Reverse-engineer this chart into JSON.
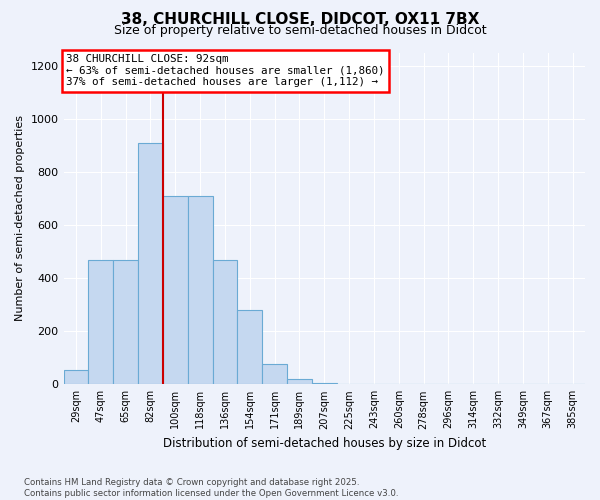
{
  "title_line1": "38, CHURCHILL CLOSE, DIDCOT, OX11 7BX",
  "title_line2": "Size of property relative to semi-detached houses in Didcot",
  "xlabel": "Distribution of semi-detached houses by size in Didcot",
  "ylabel": "Number of semi-detached properties",
  "footer_line1": "Contains HM Land Registry data © Crown copyright and database right 2025.",
  "footer_line2": "Contains public sector information licensed under the Open Government Licence v3.0.",
  "annotation_title": "38 CHURCHILL CLOSE: 92sqm",
  "annotation_line2": "← 63% of semi-detached houses are smaller (1,860)",
  "annotation_line3": "37% of semi-detached houses are larger (1,112) →",
  "bar_labels": [
    "29sqm",
    "47sqm",
    "65sqm",
    "82sqm",
    "100sqm",
    "118sqm",
    "136sqm",
    "154sqm",
    "171sqm",
    "189sqm",
    "207sqm",
    "225sqm",
    "243sqm",
    "260sqm",
    "278sqm",
    "296sqm",
    "314sqm",
    "332sqm",
    "349sqm",
    "367sqm",
    "385sqm"
  ],
  "bar_values": [
    55,
    470,
    470,
    910,
    710,
    710,
    470,
    280,
    75,
    20,
    5,
    0,
    0,
    0,
    0,
    0,
    0,
    0,
    0,
    0,
    0
  ],
  "bar_color": "#c5d8f0",
  "bar_edge_color": "#6aaad4",
  "vline_color": "#cc0000",
  "background_color": "#eef2fb",
  "grid_color": "#ffffff",
  "ylim": [
    0,
    1250
  ],
  "yticks": [
    0,
    200,
    400,
    600,
    800,
    1000,
    1200
  ],
  "vline_position": 3.5
}
